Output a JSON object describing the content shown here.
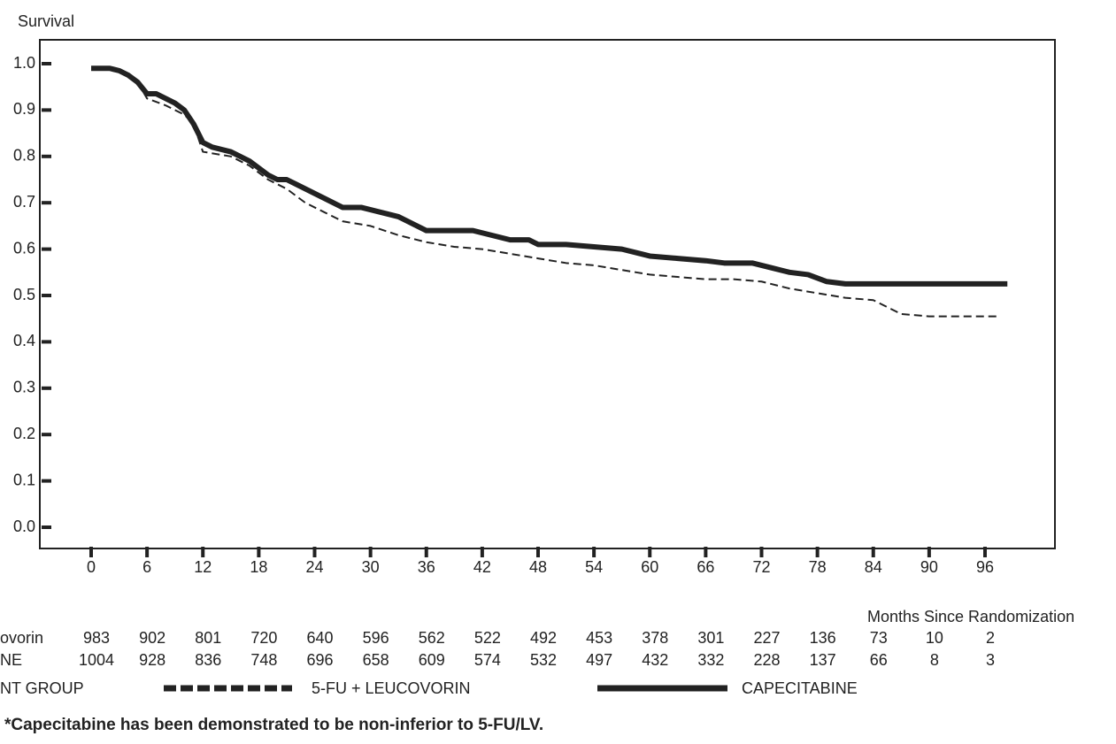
{
  "chart_data": {
    "type": "line",
    "ylabel": "Survival",
    "xlabel": "Months Since Randomization",
    "xlim": [
      0,
      96
    ],
    "xticks": [
      0,
      6,
      12,
      18,
      24,
      30,
      36,
      42,
      48,
      54,
      60,
      66,
      72,
      78,
      84,
      90,
      96
    ],
    "ylim": [
      0,
      1
    ],
    "yticks": [
      {
        "value": 0,
        "label": "0.0"
      },
      {
        "value": 0.1,
        "label": "0.1"
      },
      {
        "value": 0.2,
        "label": "0.2"
      },
      {
        "value": 0.3,
        "label": "0.3"
      },
      {
        "value": 0.4,
        "label": "0.4"
      },
      {
        "value": 0.5,
        "label": "0.5"
      },
      {
        "value": 0.6,
        "label": "0.6"
      },
      {
        "value": 0.7,
        "label": "0.7"
      },
      {
        "value": 0.8,
        "label": "0.8"
      },
      {
        "value": 0.9,
        "label": "0.9"
      },
      {
        "value": 1,
        "label": "1.0"
      }
    ],
    "legend_title": "NT GROUP",
    "series": [
      {
        "name": "5-FU + LEUCOVORIN",
        "color": "#222222",
        "dashed": true,
        "x": [
          0,
          2,
          3,
          5,
          6,
          8,
          10,
          11,
          12,
          15,
          17,
          19,
          21,
          23,
          25,
          27,
          30,
          33,
          36,
          39,
          42,
          45,
          48,
          51,
          54,
          57,
          60,
          63,
          66,
          69,
          72,
          75,
          78,
          81,
          84,
          87,
          90,
          96,
          97.5
        ],
        "values": [
          0.99,
          0.99,
          0.985,
          0.96,
          0.925,
          0.91,
          0.89,
          0.87,
          0.81,
          0.8,
          0.78,
          0.75,
          0.73,
          0.7,
          0.68,
          0.66,
          0.65,
          0.63,
          0.615,
          0.605,
          0.6,
          0.59,
          0.58,
          0.57,
          0.565,
          0.555,
          0.545,
          0.54,
          0.535,
          0.535,
          0.53,
          0.515,
          0.505,
          0.495,
          0.49,
          0.46,
          0.455,
          0.455,
          0.455
        ]
      },
      {
        "name": "CAPECITABINE",
        "color": "#222222",
        "dashed": false,
        "x": [
          0,
          2,
          3,
          4,
          5,
          6,
          7,
          8,
          9,
          10,
          11,
          12,
          13,
          15,
          17,
          19,
          20,
          21,
          22,
          24,
          26,
          27,
          29,
          31,
          33,
          35,
          36,
          39,
          41,
          43,
          45,
          47,
          48,
          51,
          54,
          57,
          59,
          60,
          63,
          66,
          68,
          71,
          73,
          75,
          77,
          79,
          81,
          98.4
        ],
        "values": [
          0.99,
          0.99,
          0.985,
          0.975,
          0.96,
          0.935,
          0.935,
          0.925,
          0.915,
          0.9,
          0.87,
          0.83,
          0.82,
          0.81,
          0.79,
          0.76,
          0.75,
          0.75,
          0.74,
          0.72,
          0.7,
          0.69,
          0.69,
          0.68,
          0.67,
          0.65,
          0.64,
          0.64,
          0.64,
          0.63,
          0.62,
          0.62,
          0.61,
          0.61,
          0.605,
          0.6,
          0.59,
          0.585,
          0.58,
          0.575,
          0.57,
          0.57,
          0.56,
          0.55,
          0.545,
          0.53,
          0.525,
          0.525
        ]
      }
    ],
    "risk_table": [
      {
        "label": "ovorin",
        "values": [
          983,
          902,
          801,
          720,
          640,
          596,
          562,
          522,
          492,
          453,
          378,
          301,
          227,
          136,
          73,
          10,
          2
        ]
      },
      {
        "label": "NE",
        "values": [
          1004,
          928,
          836,
          748,
          696,
          658,
          609,
          574,
          532,
          497,
          432,
          332,
          228,
          137,
          66,
          8,
          3
        ]
      }
    ],
    "footnote": "*Capecitabine has been demonstrated to be non-inferior to 5-FU/LV."
  }
}
